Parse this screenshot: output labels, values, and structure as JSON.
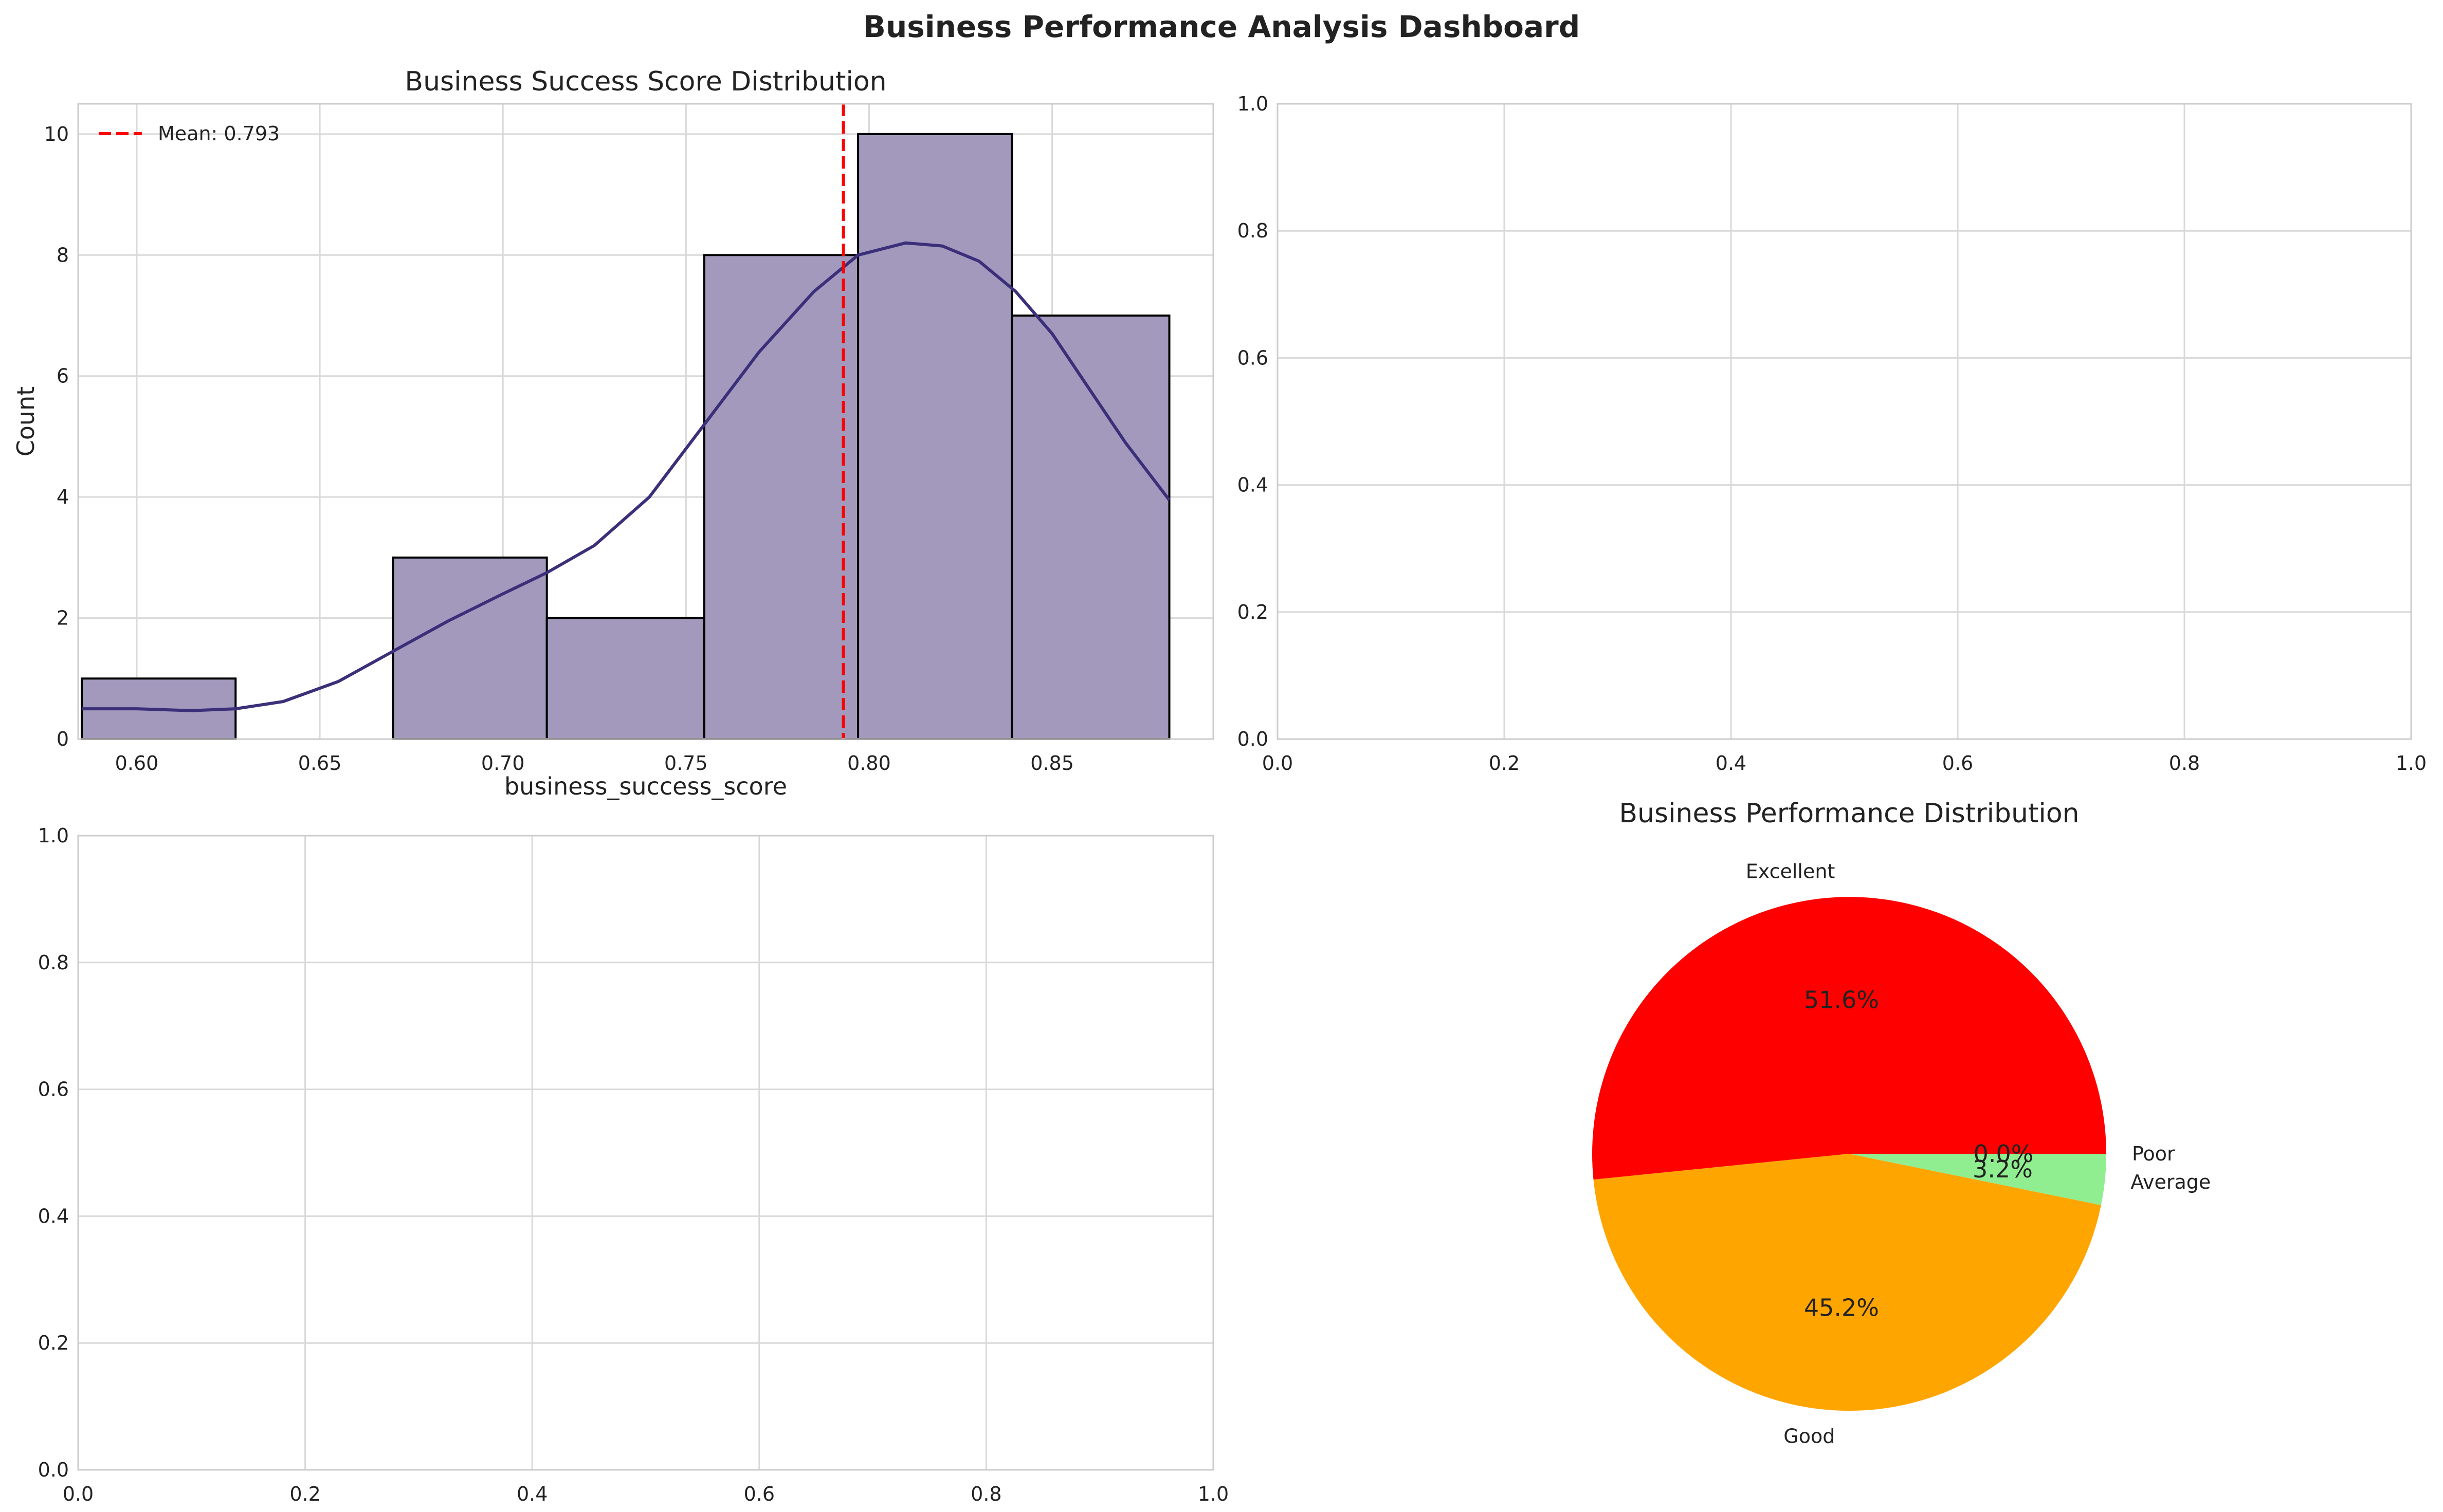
{
  "suptitle": "Business Performance Analysis Dashboard",
  "colors": {
    "hist_fill": "#a299bd",
    "hist_edge": "#000000",
    "kde_line": "#3b2f7a",
    "mean_line": "#ff0000",
    "grid": "#d9d9d9",
    "spine": "#cccccc",
    "pie": [
      "#ff0000",
      "#ffa500",
      "#90ee90",
      "#add8e6"
    ]
  },
  "chart_data": [
    {
      "type": "bar",
      "subtype": "histogram-with-kde",
      "title": "Business Success Score Distribution",
      "xlabel": "business_success_score",
      "ylabel": "Count",
      "xlim": [
        0.584,
        0.894
      ],
      "ylim": [
        0,
        10.5
      ],
      "xticks": [
        "0.60",
        "0.65",
        "0.70",
        "0.75",
        "0.80",
        "0.85"
      ],
      "xtick_values": [
        0.6,
        0.65,
        0.7,
        0.75,
        0.8,
        0.85
      ],
      "yticks": [
        "0",
        "2",
        "4",
        "6",
        "8",
        "10"
      ],
      "ytick_values": [
        0,
        2,
        4,
        6,
        8,
        10
      ],
      "bins": [
        {
          "x0": 0.585,
          "x1": 0.627,
          "count": 1
        },
        {
          "x0": 0.627,
          "x1": 0.67,
          "count": 0
        },
        {
          "x0": 0.67,
          "x1": 0.712,
          "count": 3
        },
        {
          "x0": 0.712,
          "x1": 0.755,
          "count": 2
        },
        {
          "x0": 0.755,
          "x1": 0.797,
          "count": 8
        },
        {
          "x0": 0.797,
          "x1": 0.839,
          "count": 10
        },
        {
          "x0": 0.839,
          "x1": 0.882,
          "count": 7
        }
      ],
      "kde": {
        "x": [
          0.585,
          0.6,
          0.615,
          0.627,
          0.64,
          0.655,
          0.67,
          0.685,
          0.7,
          0.712,
          0.725,
          0.74,
          0.755,
          0.77,
          0.785,
          0.797,
          0.81,
          0.82,
          0.83,
          0.84,
          0.85,
          0.86,
          0.87,
          0.882
        ],
        "y": [
          0.5,
          0.5,
          0.47,
          0.5,
          0.62,
          0.95,
          1.45,
          1.95,
          2.4,
          2.75,
          3.2,
          4.0,
          5.2,
          6.4,
          7.4,
          8.0,
          8.2,
          8.15,
          7.9,
          7.4,
          6.7,
          5.8,
          4.9,
          3.95
        ]
      },
      "mean": 0.793,
      "legend": "Mean: 0.793",
      "legend_position": "top-left",
      "grid": true
    },
    {
      "type": "scatter",
      "title": "",
      "empty": true,
      "xlim": [
        0,
        1
      ],
      "ylim": [
        0,
        1
      ],
      "xticks": [
        "0.0",
        "0.2",
        "0.4",
        "0.6",
        "0.8",
        "1.0"
      ],
      "yticks": [
        "0.0",
        "0.2",
        "0.4",
        "0.6",
        "0.8",
        "1.0"
      ],
      "grid": true
    },
    {
      "type": "scatter",
      "title": "",
      "empty": true,
      "xlim": [
        0,
        1
      ],
      "ylim": [
        0,
        1
      ],
      "xticks": [
        "0.0",
        "0.2",
        "0.4",
        "0.6",
        "0.8",
        "1.0"
      ],
      "yticks": [
        "0.0",
        "0.2",
        "0.4",
        "0.6",
        "0.8",
        "1.0"
      ],
      "grid": true
    },
    {
      "type": "pie",
      "title": "Business Performance Distribution",
      "labels": [
        "Excellent",
        "Good",
        "Average",
        "Poor"
      ],
      "values": [
        51.6,
        45.2,
        3.2,
        0.0
      ],
      "pct_labels": [
        "51.6%",
        "45.2%",
        "3.2%",
        "0.0%"
      ],
      "start_angle_deg": 0,
      "counterclockwise": true
    }
  ]
}
